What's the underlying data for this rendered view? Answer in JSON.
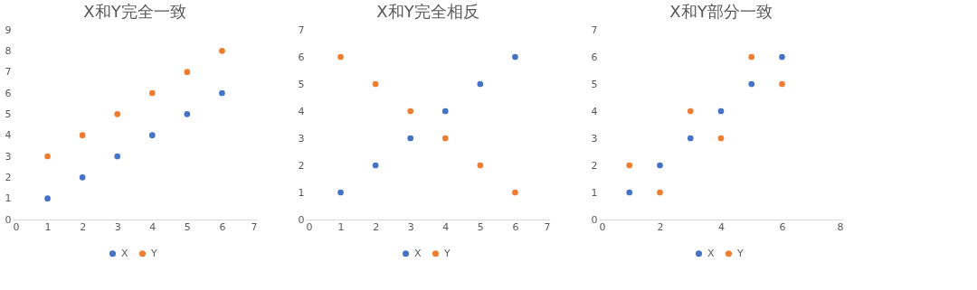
{
  "chart_data": [
    {
      "type": "scatter",
      "title": "X和Y完全一致",
      "x": [
        1,
        2,
        3,
        4,
        5,
        6
      ],
      "series": [
        {
          "name": "X",
          "color": "#4472c4",
          "values": [
            1,
            2,
            3,
            4,
            5,
            6
          ]
        },
        {
          "name": "Y",
          "color": "#ed7d31",
          "values": [
            3,
            4,
            5,
            6,
            7,
            8
          ]
        }
      ],
      "xlim": [
        0,
        7
      ],
      "xticks": [
        0,
        1,
        2,
        3,
        4,
        5,
        6,
        7
      ],
      "ylim": [
        0,
        9
      ],
      "yticks": [
        0,
        1,
        2,
        3,
        4,
        5,
        6,
        7,
        8,
        9
      ],
      "legend": "bottom",
      "marker": "circle"
    },
    {
      "type": "scatter",
      "title": "X和Y完全相反",
      "x": [
        1,
        2,
        3,
        4,
        5,
        6
      ],
      "series": [
        {
          "name": "X",
          "color": "#4472c4",
          "values": [
            1,
            2,
            3,
            4,
            5,
            6
          ]
        },
        {
          "name": "Y",
          "color": "#ed7d31",
          "values": [
            6,
            5,
            4,
            3,
            2,
            1
          ]
        }
      ],
      "xlim": [
        0,
        7
      ],
      "xticks": [
        0,
        1,
        2,
        3,
        4,
        5,
        6,
        7
      ],
      "ylim": [
        0,
        7
      ],
      "yticks": [
        0,
        1,
        2,
        3,
        4,
        5,
        6,
        7
      ],
      "legend": "bottom",
      "marker": "circle"
    },
    {
      "type": "scatter",
      "title": "X和Y部分一致",
      "x": [
        1,
        2,
        3,
        4,
        5,
        6
      ],
      "series": [
        {
          "name": "X",
          "color": "#4472c4",
          "values": [
            1,
            2,
            3,
            4,
            5,
            6
          ]
        },
        {
          "name": "Y",
          "color": "#ed7d31",
          "values": [
            2,
            1,
            4,
            3,
            6,
            5
          ]
        }
      ],
      "xlim": [
        0,
        8
      ],
      "xticks": [
        0,
        2,
        4,
        6,
        8
      ],
      "ylim": [
        0,
        7
      ],
      "yticks": [
        0,
        1,
        2,
        3,
        4,
        5,
        6,
        7
      ],
      "legend": "bottom",
      "marker": "circle"
    }
  ]
}
